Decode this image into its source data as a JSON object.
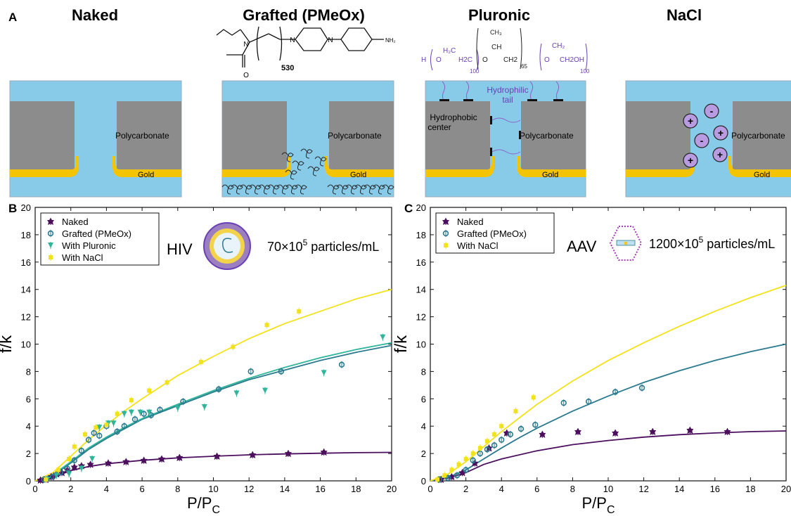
{
  "panel_a": {
    "letter": "A",
    "panels": [
      {
        "title": "Naked",
        "material": "Polycarbonate",
        "electrode": "Gold"
      },
      {
        "title": "Grafted (PMeOx)",
        "material": "Polycarbonate",
        "electrode": "Gold",
        "formula_labels": {
          "n": "530",
          "amine": "NH₂",
          "N": "N",
          "O": "O"
        }
      },
      {
        "title": "Pluronic",
        "material": "Polycarbonate",
        "electrode": "Gold",
        "formula_labels": {
          "H": "H",
          "O": "O",
          "H2C": "H₂C",
          "H2C_b": "H2C",
          "CH3": "CH₃",
          "CH": "CH",
          "CH2": "CH2",
          "CH2_b": "CH₂",
          "CH2_c": "CH2",
          "OH": "OH",
          "n100": "100",
          "n65": "65",
          "n100b": "100"
        },
        "annotations": {
          "tail_line1": "Hydrophilic",
          "tail_line2": "tail",
          "center_line1": "Hydrophobic",
          "center_line2": "center"
        }
      },
      {
        "title": "NaCl",
        "material": "Polycarbonate",
        "electrode": "Gold",
        "ions": [
          "+",
          "-",
          "+",
          "-",
          "+",
          "+"
        ]
      }
    ],
    "colors": {
      "water": "#87cbe9",
      "polymer": "#8c8c8c",
      "gold": "#f5c400",
      "purple": "#8b5fc7",
      "ion_fill": "#b89be0"
    }
  },
  "chart_data": [
    {
      "letter": "B",
      "type": "scatter",
      "xlabel": "P/P",
      "xlabel_sub": "C",
      "ylabel": "f/k",
      "xlim": [
        0,
        20
      ],
      "ylim": [
        0,
        20
      ],
      "xticks": [
        "0",
        "2",
        "4",
        "6",
        "8",
        "10",
        "12",
        "14",
        "16",
        "18",
        "20"
      ],
      "yticks": [
        "0",
        "2",
        "4",
        "6",
        "8",
        "10",
        "12",
        "14",
        "16",
        "18",
        "20"
      ],
      "grid": false,
      "legend_position": "top-left",
      "virus_label": "HIV",
      "concentration": "70×10",
      "concentration_exp": "5",
      "concentration_unit": " particles/mL",
      "series": [
        {
          "name": "Naked",
          "color": "#4b0f5e",
          "marker": "star",
          "x": [
            0.3,
            0.6,
            0.9,
            1.2,
            1.5,
            1.8,
            2.2,
            2.6,
            3.1,
            4.1,
            5.1,
            6.1,
            7.1,
            8.1,
            10.2,
            12.2,
            14.2,
            16.2
          ],
          "y": [
            0.05,
            0.1,
            0.3,
            0.5,
            0.6,
            0.8,
            1.0,
            1.1,
            1.2,
            1.3,
            1.4,
            1.5,
            1.6,
            1.7,
            1.8,
            1.9,
            2.0,
            2.1
          ],
          "fit": [
            [
              0,
              0
            ],
            [
              0.5,
              0.02
            ],
            [
              1,
              0.2
            ],
            [
              1.5,
              0.5
            ],
            [
              2,
              0.75
            ],
            [
              3,
              1.05
            ],
            [
              4,
              1.25
            ],
            [
              6,
              1.5
            ],
            [
              8,
              1.68
            ],
            [
              10,
              1.8
            ],
            [
              12,
              1.9
            ],
            [
              14,
              1.97
            ],
            [
              16,
              2.02
            ],
            [
              18,
              2.06
            ],
            [
              20,
              2.08
            ]
          ]
        },
        {
          "name": "Grafted (PMeOx)",
          "color": "#2a7a8f",
          "marker": "circle",
          "x": [
            0.5,
            1.0,
            1.4,
            1.8,
            2.2,
            2.6,
            3.0,
            3.3,
            3.6,
            4.0,
            4.6,
            5.0,
            5.6,
            6.1,
            6.5,
            7.0,
            8.3,
            10.3,
            12.1,
            13.8,
            17.2
          ],
          "y": [
            0.1,
            0.3,
            0.6,
            0.9,
            1.5,
            2.2,
            3.0,
            3.5,
            3.3,
            4.0,
            3.6,
            4.0,
            4.5,
            4.9,
            4.8,
            5.2,
            5.8,
            6.7,
            8.0,
            8.0,
            8.5
          ],
          "fit": [
            [
              0,
              0
            ],
            [
              1,
              0.4
            ],
            [
              2,
              1.3
            ],
            [
              3,
              2.3
            ],
            [
              4,
              3.1
            ],
            [
              5,
              3.8
            ],
            [
              6,
              4.5
            ],
            [
              8,
              5.5
            ],
            [
              10,
              6.5
            ],
            [
              12,
              7.4
            ],
            [
              14,
              8.1
            ],
            [
              16,
              8.8
            ],
            [
              18,
              9.4
            ],
            [
              20,
              9.9
            ]
          ]
        },
        {
          "name": "With Pluronic",
          "color": "#2fb59a",
          "marker": "triangle",
          "x": [
            0.7,
            1.2,
            1.9,
            2.6,
            3.2,
            3.6,
            4.1,
            4.4,
            5.0,
            5.4,
            5.9,
            6.4,
            8.0,
            9.5,
            11.3,
            12.9,
            16.2,
            19.5
          ],
          "y": [
            0.1,
            0.4,
            0.5,
            0.9,
            1.6,
            3.9,
            4.2,
            4.2,
            4.9,
            5.0,
            5.0,
            5.0,
            5.3,
            5.4,
            6.4,
            6.6,
            7.9,
            10.5
          ],
          "fit": [
            [
              0,
              0
            ],
            [
              1,
              0.45
            ],
            [
              2,
              1.4
            ],
            [
              3,
              2.4
            ],
            [
              4,
              3.2
            ],
            [
              5,
              3.9
            ],
            [
              6,
              4.55
            ],
            [
              8,
              5.6
            ],
            [
              10,
              6.6
            ],
            [
              12,
              7.5
            ],
            [
              14,
              8.3
            ],
            [
              16,
              9.0
            ],
            [
              18,
              9.6
            ],
            [
              20,
              10.1
            ]
          ]
        },
        {
          "name": "With NaCl",
          "color": "#f2e21b",
          "marker": "square",
          "x": [
            0.6,
            1.3,
            1.9,
            2.2,
            2.8,
            3.4,
            4.0,
            4.6,
            5.4,
            6.4,
            7.4,
            9.3,
            11.1,
            13.0,
            14.8
          ],
          "y": [
            0.1,
            0.8,
            1.6,
            2.5,
            3.4,
            3.9,
            4.1,
            4.9,
            5.9,
            6.6,
            7.2,
            8.7,
            9.8,
            11.4,
            12.4
          ],
          "fit": [
            [
              0,
              0
            ],
            [
              1,
              0.6
            ],
            [
              2,
              1.8
            ],
            [
              3,
              3.0
            ],
            [
              4,
              4.1
            ],
            [
              5,
              5.1
            ],
            [
              6,
              6.0
            ],
            [
              8,
              7.7
            ],
            [
              10,
              9.1
            ],
            [
              12,
              10.4
            ],
            [
              14,
              11.5
            ],
            [
              16,
              12.4
            ],
            [
              18,
              13.3
            ],
            [
              20,
              14.0
            ]
          ]
        }
      ]
    },
    {
      "letter": "C",
      "type": "scatter",
      "xlabel": "P/P",
      "xlabel_sub": "C",
      "ylabel": "f/k",
      "xlim": [
        0,
        20
      ],
      "ylim": [
        0,
        20
      ],
      "xticks": [
        "0",
        "2",
        "4",
        "6",
        "8",
        "10",
        "12",
        "14",
        "16",
        "18",
        "20"
      ],
      "yticks": [
        "0",
        "2",
        "4",
        "6",
        "8",
        "10",
        "12",
        "14",
        "16",
        "18",
        "20"
      ],
      "grid": false,
      "legend_position": "top-left",
      "virus_label": "AAV",
      "concentration": "1200×10",
      "concentration_exp": "5",
      "concentration_unit": " particles/mL",
      "series": [
        {
          "name": "Naked",
          "color": "#4b0f5e",
          "marker": "star",
          "x": [
            0.6,
            1.2,
            1.8,
            2.5,
            3.3,
            4.3,
            6.3,
            8.3,
            10.4,
            12.5,
            14.6,
            16.7
          ],
          "y": [
            0.1,
            0.3,
            0.6,
            1.3,
            2.4,
            3.5,
            3.4,
            3.6,
            3.5,
            3.6,
            3.7,
            3.6
          ],
          "fit": [
            [
              0,
              0
            ],
            [
              1,
              0.2
            ],
            [
              2,
              0.6
            ],
            [
              3,
              1.2
            ],
            [
              4,
              1.6
            ],
            [
              6,
              2.2
            ],
            [
              8,
              2.65
            ],
            [
              10,
              2.95
            ],
            [
              12,
              3.2
            ],
            [
              14,
              3.38
            ],
            [
              16,
              3.5
            ],
            [
              18,
              3.6
            ],
            [
              20,
              3.65
            ]
          ]
        },
        {
          "name": "Grafted (PMeOx)",
          "color": "#2a7a8f",
          "marker": "circle",
          "x": [
            0.5,
            1.0,
            1.5,
            2.0,
            2.4,
            2.8,
            3.2,
            3.6,
            4.0,
            4.5,
            5.1,
            5.9,
            7.5,
            8.9,
            10.4,
            11.9
          ],
          "y": [
            0.1,
            0.2,
            0.4,
            0.8,
            1.5,
            2.0,
            2.3,
            2.6,
            3.0,
            3.4,
            3.8,
            4.1,
            5.7,
            5.8,
            6.5,
            6.8
          ],
          "fit": [
            [
              0,
              0
            ],
            [
              1,
              0.25
            ],
            [
              2,
              0.8
            ],
            [
              3,
              1.6
            ],
            [
              4,
              2.4
            ],
            [
              5,
              3.15
            ],
            [
              6,
              3.85
            ],
            [
              8,
              5.1
            ],
            [
              10,
              6.2
            ],
            [
              12,
              7.2
            ],
            [
              14,
              8.05
            ],
            [
              16,
              8.8
            ],
            [
              18,
              9.45
            ],
            [
              20,
              10.0
            ]
          ]
        },
        {
          "name": "With NaCl",
          "color": "#f2e21b",
          "marker": "square",
          "x": [
            0.4,
            0.8,
            1.2,
            1.6,
            2.0,
            2.4,
            2.8,
            3.2,
            3.6,
            4.0,
            4.8,
            5.8
          ],
          "y": [
            0.1,
            0.4,
            0.8,
            1.2,
            1.6,
            2.0,
            2.4,
            2.9,
            3.4,
            4.0,
            5.1,
            6.1
          ],
          "fit": [
            [
              0,
              0
            ],
            [
              1,
              0.5
            ],
            [
              2,
              1.4
            ],
            [
              3,
              2.5
            ],
            [
              4,
              3.6
            ],
            [
              5,
              4.6
            ],
            [
              6,
              5.6
            ],
            [
              8,
              7.3
            ],
            [
              10,
              8.8
            ],
            [
              12,
              10.1
            ],
            [
              14,
              11.3
            ],
            [
              16,
              12.4
            ],
            [
              18,
              13.4
            ],
            [
              20,
              14.3
            ]
          ]
        }
      ]
    }
  ]
}
